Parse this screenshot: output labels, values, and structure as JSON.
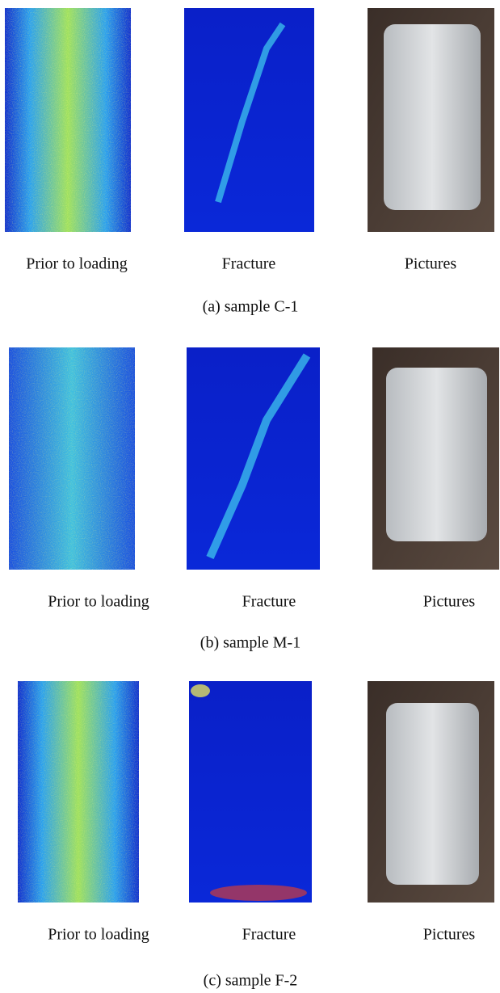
{
  "panels": [
    {
      "labels": [
        "Prior to loading",
        "Fracture",
        "Pictures"
      ],
      "caption": "(a) sample C-1"
    },
    {
      "labels": [
        "Prior to loading",
        "Fracture",
        "Pictures"
      ],
      "caption": "(b) sample M-1"
    },
    {
      "labels": [
        "Prior to loading",
        "Fracture",
        "Pictures"
      ],
      "caption": "(c) sample F-2"
    }
  ]
}
